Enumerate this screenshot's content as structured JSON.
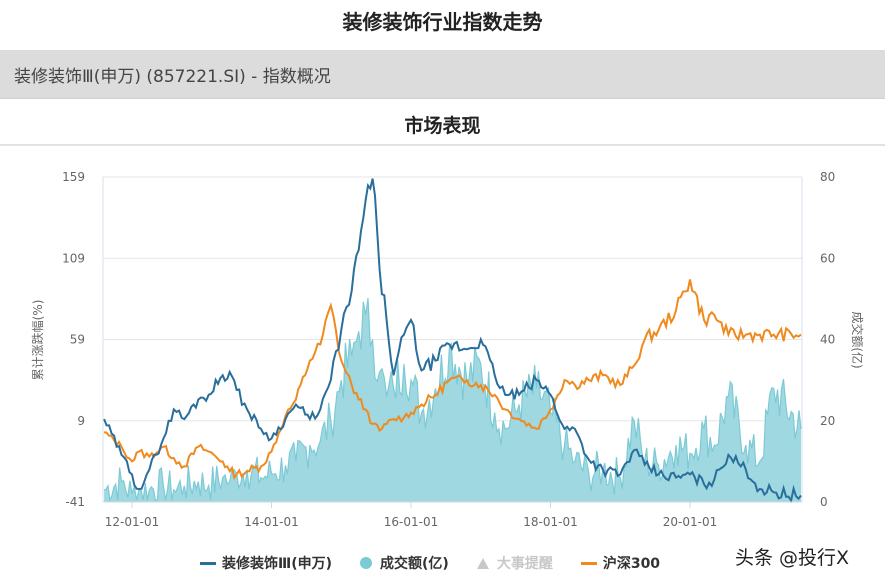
{
  "page": {
    "title": "装修装饰行业指数走势",
    "subheader": "装修装饰Ⅲ(申万) (857221.SI) - 指数概况",
    "section_title": "市场表现",
    "watermark": "头条 @投行X"
  },
  "colors": {
    "index": "#2a6e9c",
    "volume": "#7ccad6",
    "volume_fill": "#9fd8e0",
    "hs300": "#f08a1e",
    "events": "#c8c8c8",
    "grid": "#e6e6e6"
  },
  "legend": [
    {
      "label": "装修装饰Ⅲ(申万)",
      "type": "line",
      "color": "#2a6e9c",
      "enabled": true
    },
    {
      "label": "成交额(亿)",
      "type": "dot",
      "color": "#7ccad6",
      "enabled": true
    },
    {
      "label": "大事提醒",
      "type": "triangle",
      "color": "#c8c8c8",
      "enabled": false
    },
    {
      "label": "沪深300",
      "type": "line",
      "color": "#f08a1e",
      "enabled": true
    }
  ],
  "chart_data": {
    "type": "line",
    "title": "市场表现",
    "xlabel": "",
    "ylabel": "累计涨跌幅(%)",
    "ylabel_right": "成交额(亿)",
    "ylim": [
      -41,
      159
    ],
    "ylim_right": [
      0,
      80
    ],
    "yticks": [
      "159",
      "109",
      "59",
      "9",
      "-41"
    ],
    "yticks_right": [
      "80",
      "60",
      "40",
      "20",
      "0"
    ],
    "xticks": [
      "12-01-01",
      "14-01-01",
      "16-01-01",
      "18-01-01",
      "20-01-01"
    ],
    "grid": true,
    "legend_position": "bottom",
    "x": [
      2011.6,
      2011.85,
      2012.0,
      2012.1,
      2012.25,
      2012.45,
      2012.6,
      2012.75,
      2012.95,
      2013.1,
      2013.3,
      2013.4,
      2013.5,
      2013.65,
      2013.85,
      2014.0,
      2014.2,
      2014.35,
      2014.55,
      2014.7,
      2014.85,
      2015.0,
      2015.15,
      2015.25,
      2015.35,
      2015.45,
      2015.55,
      2015.65,
      2015.75,
      2015.9,
      2016.0,
      2016.15,
      2016.35,
      2016.55,
      2016.8,
      2017.0,
      2017.2,
      2017.35,
      2017.55,
      2017.8,
      2018.0,
      2018.2,
      2018.35,
      2018.55,
      2018.75,
      2019.0,
      2019.2,
      2019.35,
      2019.55,
      2019.8,
      2020.0,
      2020.2,
      2020.35,
      2020.55,
      2020.8,
      2021.0,
      2021.2,
      2021.45
    ],
    "series": [
      {
        "name": "装修装饰Ⅲ(申万)",
        "axis": "left",
        "values": [
          10,
          -12,
          -24,
          -33,
          -21,
          -2,
          16,
          10,
          22,
          25,
          37,
          39,
          28,
          16,
          4,
          -2,
          10,
          19,
          10,
          16,
          34,
          65,
          89,
          114,
          145,
          158,
          102,
          71,
          37,
          62,
          71,
          40,
          46,
          56,
          53,
          59,
          37,
          25,
          25,
          34,
          25,
          4,
          4,
          -15,
          -21,
          -24,
          -9,
          -18,
          -24,
          -26,
          -24,
          -30,
          -27,
          -12,
          -21,
          -33,
          -35,
          -37
        ]
      },
      {
        "name": "沪深300",
        "axis": "left",
        "values": [
          2,
          -7,
          -16,
          -10,
          -13,
          -7,
          -14,
          -19,
          -7,
          -10,
          -16,
          -22,
          -24,
          -22,
          -19,
          -10,
          12,
          22,
          46,
          56,
          80,
          46,
          31,
          22,
          16,
          7,
          3,
          7,
          10,
          11,
          14,
          19,
          25,
          34,
          34,
          31,
          25,
          16,
          10,
          4,
          16,
          34,
          31,
          34,
          37,
          31,
          43,
          59,
          65,
          77,
          96,
          71,
          74,
          62,
          62,
          62,
          62,
          62
        ]
      },
      {
        "name": "成交额(亿)",
        "axis": "right",
        "type": "area",
        "values": [
          3,
          5,
          2,
          3,
          3,
          4,
          3,
          4,
          5,
          4,
          6,
          5,
          7,
          8,
          6,
          7,
          9,
          10,
          14,
          15,
          20,
          30,
          36,
          42,
          46,
          40,
          32,
          26,
          28,
          34,
          30,
          22,
          28,
          38,
          30,
          34,
          22,
          18,
          24,
          28,
          22,
          14,
          10,
          7,
          8,
          6,
          20,
          10,
          9,
          14,
          12,
          18,
          14,
          26,
          14,
          10,
          28,
          18
        ]
      }
    ]
  }
}
